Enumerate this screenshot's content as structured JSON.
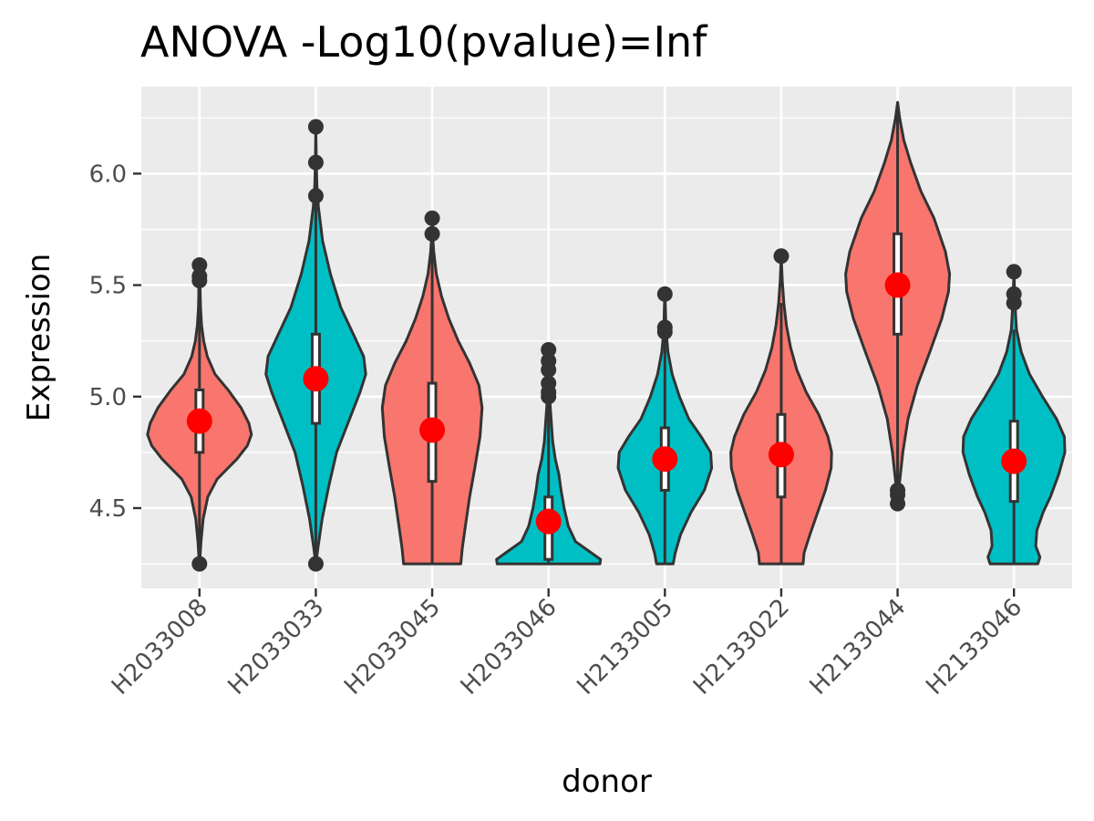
{
  "chart_data": {
    "type": "violin",
    "title": "ANOVA -Log10(pvalue)=Inf",
    "xlabel": "donor",
    "ylabel": "Expression",
    "ylim": [
      4.14,
      6.39
    ],
    "y_ticks": [
      4.5,
      5.0,
      5.5,
      6.0
    ],
    "y_tick_labels": [
      "4.5",
      "5.0",
      "5.5",
      "6.0"
    ],
    "grid": true,
    "legend": "none",
    "colors": {
      "group_a": "#F8766D",
      "group_b": "#00BFC4",
      "mean": "#FF0000",
      "panel": "#EBEBEB",
      "outline": "#333333"
    },
    "categories": [
      "H2033008",
      "H2033033",
      "H2033045",
      "H2033046",
      "H2133005",
      "H2133022",
      "H2133044",
      "H2133046"
    ],
    "violins": [
      {
        "donor": "H2033008",
        "fill": "#F8766D",
        "min": 4.25,
        "max": 5.59,
        "q1": 4.75,
        "median": 4.9,
        "q3": 5.03,
        "mean": 4.89,
        "whisker_low": 4.27,
        "whisker_high": 5.39,
        "outliers": [
          4.25,
          5.52,
          5.54,
          5.59
        ],
        "profile": [
          [
            4.25,
            0.0
          ],
          [
            4.28,
            0.01
          ],
          [
            4.35,
            0.03
          ],
          [
            4.45,
            0.07
          ],
          [
            4.55,
            0.16
          ],
          [
            4.63,
            0.34
          ],
          [
            4.72,
            0.72
          ],
          [
            4.78,
            0.92
          ],
          [
            4.83,
            1.0
          ],
          [
            4.88,
            0.95
          ],
          [
            4.95,
            0.8
          ],
          [
            5.03,
            0.55
          ],
          [
            5.1,
            0.3
          ],
          [
            5.18,
            0.15
          ],
          [
            5.25,
            0.08
          ],
          [
            5.32,
            0.04
          ],
          [
            5.4,
            0.02
          ],
          [
            5.5,
            0.01
          ],
          [
            5.59,
            0.0
          ]
        ]
      },
      {
        "donor": "H2033033",
        "fill": "#00BFC4",
        "min": 4.25,
        "max": 6.21,
        "q1": 4.88,
        "median": 5.1,
        "q3": 5.28,
        "mean": 5.08,
        "whisker_low": 4.3,
        "whisker_high": 5.88,
        "outliers": [
          4.25,
          5.9,
          6.05,
          6.21
        ],
        "profile": [
          [
            4.25,
            0.0
          ],
          [
            4.32,
            0.04
          ],
          [
            4.45,
            0.12
          ],
          [
            4.6,
            0.25
          ],
          [
            4.75,
            0.4
          ],
          [
            4.9,
            0.65
          ],
          [
            5.02,
            0.85
          ],
          [
            5.1,
            0.96
          ],
          [
            5.18,
            0.92
          ],
          [
            5.28,
            0.72
          ],
          [
            5.4,
            0.48
          ],
          [
            5.55,
            0.28
          ],
          [
            5.7,
            0.13
          ],
          [
            5.85,
            0.05
          ],
          [
            5.95,
            0.02
          ],
          [
            6.05,
            0.01
          ],
          [
            6.21,
            0.0
          ]
        ]
      },
      {
        "donor": "H2033045",
        "fill": "#F8766D",
        "min": 4.25,
        "max": 5.8,
        "q1": 4.62,
        "median": 4.87,
        "q3": 5.06,
        "mean": 4.85,
        "whisker_low": 4.25,
        "whisker_high": 5.68,
        "outliers": [
          5.73,
          5.8
        ],
        "profile": [
          [
            4.25,
            0.55
          ],
          [
            4.32,
            0.58
          ],
          [
            4.42,
            0.64
          ],
          [
            4.55,
            0.72
          ],
          [
            4.68,
            0.82
          ],
          [
            4.82,
            0.92
          ],
          [
            4.95,
            0.96
          ],
          [
            5.05,
            0.9
          ],
          [
            5.15,
            0.72
          ],
          [
            5.25,
            0.5
          ],
          [
            5.35,
            0.32
          ],
          [
            5.45,
            0.18
          ],
          [
            5.55,
            0.08
          ],
          [
            5.65,
            0.03
          ],
          [
            5.72,
            0.01
          ],
          [
            5.8,
            0.0
          ]
        ]
      },
      {
        "donor": "H2033046",
        "fill": "#00BFC4",
        "min": 4.25,
        "max": 5.21,
        "q1": 4.27,
        "median": 4.4,
        "q3": 4.55,
        "mean": 4.44,
        "whisker_low": 4.25,
        "whisker_high": 4.98,
        "outliers": [
          5.0,
          5.02,
          5.06,
          5.12,
          5.16,
          5.21
        ],
        "profile": [
          [
            4.25,
            0.99
          ],
          [
            4.27,
            1.0
          ],
          [
            4.3,
            0.82
          ],
          [
            4.35,
            0.52
          ],
          [
            4.42,
            0.38
          ],
          [
            4.5,
            0.3
          ],
          [
            4.58,
            0.24
          ],
          [
            4.65,
            0.2
          ],
          [
            4.72,
            0.13
          ],
          [
            4.8,
            0.08
          ],
          [
            4.9,
            0.05
          ],
          [
            5.0,
            0.02
          ],
          [
            5.1,
            0.01
          ],
          [
            5.21,
            0.0
          ]
        ]
      },
      {
        "donor": "H2133005",
        "fill": "#00BFC4",
        "min": 4.25,
        "max": 5.46,
        "q1": 4.58,
        "median": 4.73,
        "q3": 4.86,
        "mean": 4.72,
        "whisker_low": 4.25,
        "whisker_high": 5.28,
        "outliers": [
          5.29,
          5.31,
          5.46
        ],
        "profile": [
          [
            4.25,
            0.16
          ],
          [
            4.3,
            0.2
          ],
          [
            4.38,
            0.3
          ],
          [
            4.48,
            0.5
          ],
          [
            4.58,
            0.76
          ],
          [
            4.68,
            0.9
          ],
          [
            4.75,
            0.88
          ],
          [
            4.82,
            0.7
          ],
          [
            4.9,
            0.46
          ],
          [
            5.0,
            0.28
          ],
          [
            5.1,
            0.14
          ],
          [
            5.2,
            0.06
          ],
          [
            5.3,
            0.02
          ],
          [
            5.4,
            0.01
          ],
          [
            5.46,
            0.0
          ]
        ]
      },
      {
        "donor": "H2133022",
        "fill": "#F8766D",
        "min": 4.25,
        "max": 5.63,
        "q1": 4.55,
        "median": 4.75,
        "q3": 4.92,
        "mean": 4.74,
        "whisker_low": 4.25,
        "whisker_high": 5.42,
        "outliers": [
          5.63
        ],
        "profile": [
          [
            4.25,
            0.42
          ],
          [
            4.3,
            0.44
          ],
          [
            4.38,
            0.55
          ],
          [
            4.48,
            0.7
          ],
          [
            4.58,
            0.85
          ],
          [
            4.68,
            0.96
          ],
          [
            4.75,
            0.97
          ],
          [
            4.82,
            0.9
          ],
          [
            4.92,
            0.72
          ],
          [
            5.02,
            0.48
          ],
          [
            5.12,
            0.3
          ],
          [
            5.22,
            0.18
          ],
          [
            5.32,
            0.1
          ],
          [
            5.42,
            0.05
          ],
          [
            5.52,
            0.02
          ],
          [
            5.63,
            0.0
          ]
        ]
      },
      {
        "donor": "H2133044",
        "fill": "#F8766D",
        "min": 4.52,
        "max": 6.32,
        "q1": 5.28,
        "median": 5.52,
        "q3": 5.73,
        "mean": 5.5,
        "whisker_low": 4.6,
        "whisker_high": 6.28,
        "outliers": [
          4.52,
          4.56,
          4.58
        ],
        "profile": [
          [
            4.52,
            0.0
          ],
          [
            4.6,
            0.03
          ],
          [
            4.75,
            0.1
          ],
          [
            4.9,
            0.2
          ],
          [
            5.05,
            0.38
          ],
          [
            5.2,
            0.62
          ],
          [
            5.35,
            0.85
          ],
          [
            5.47,
            0.98
          ],
          [
            5.55,
            1.0
          ],
          [
            5.65,
            0.92
          ],
          [
            5.8,
            0.7
          ],
          [
            5.92,
            0.45
          ],
          [
            6.05,
            0.25
          ],
          [
            6.15,
            0.12
          ],
          [
            6.25,
            0.04
          ],
          [
            6.32,
            0.0
          ]
        ]
      },
      {
        "donor": "H2133046",
        "fill": "#00BFC4",
        "min": 4.25,
        "max": 5.56,
        "q1": 4.53,
        "median": 4.73,
        "q3": 4.89,
        "mean": 4.71,
        "whisker_low": 4.25,
        "whisker_high": 5.3,
        "outliers": [
          5.42,
          5.46,
          5.56
        ],
        "profile": [
          [
            4.25,
            0.46
          ],
          [
            4.28,
            0.5
          ],
          [
            4.33,
            0.42
          ],
          [
            4.4,
            0.44
          ],
          [
            4.48,
            0.56
          ],
          [
            4.55,
            0.7
          ],
          [
            4.65,
            0.86
          ],
          [
            4.75,
            0.98
          ],
          [
            4.82,
            0.97
          ],
          [
            4.9,
            0.82
          ],
          [
            5.0,
            0.55
          ],
          [
            5.1,
            0.3
          ],
          [
            5.2,
            0.14
          ],
          [
            5.3,
            0.05
          ],
          [
            5.42,
            0.02
          ],
          [
            5.56,
            0.0
          ]
        ]
      }
    ]
  }
}
